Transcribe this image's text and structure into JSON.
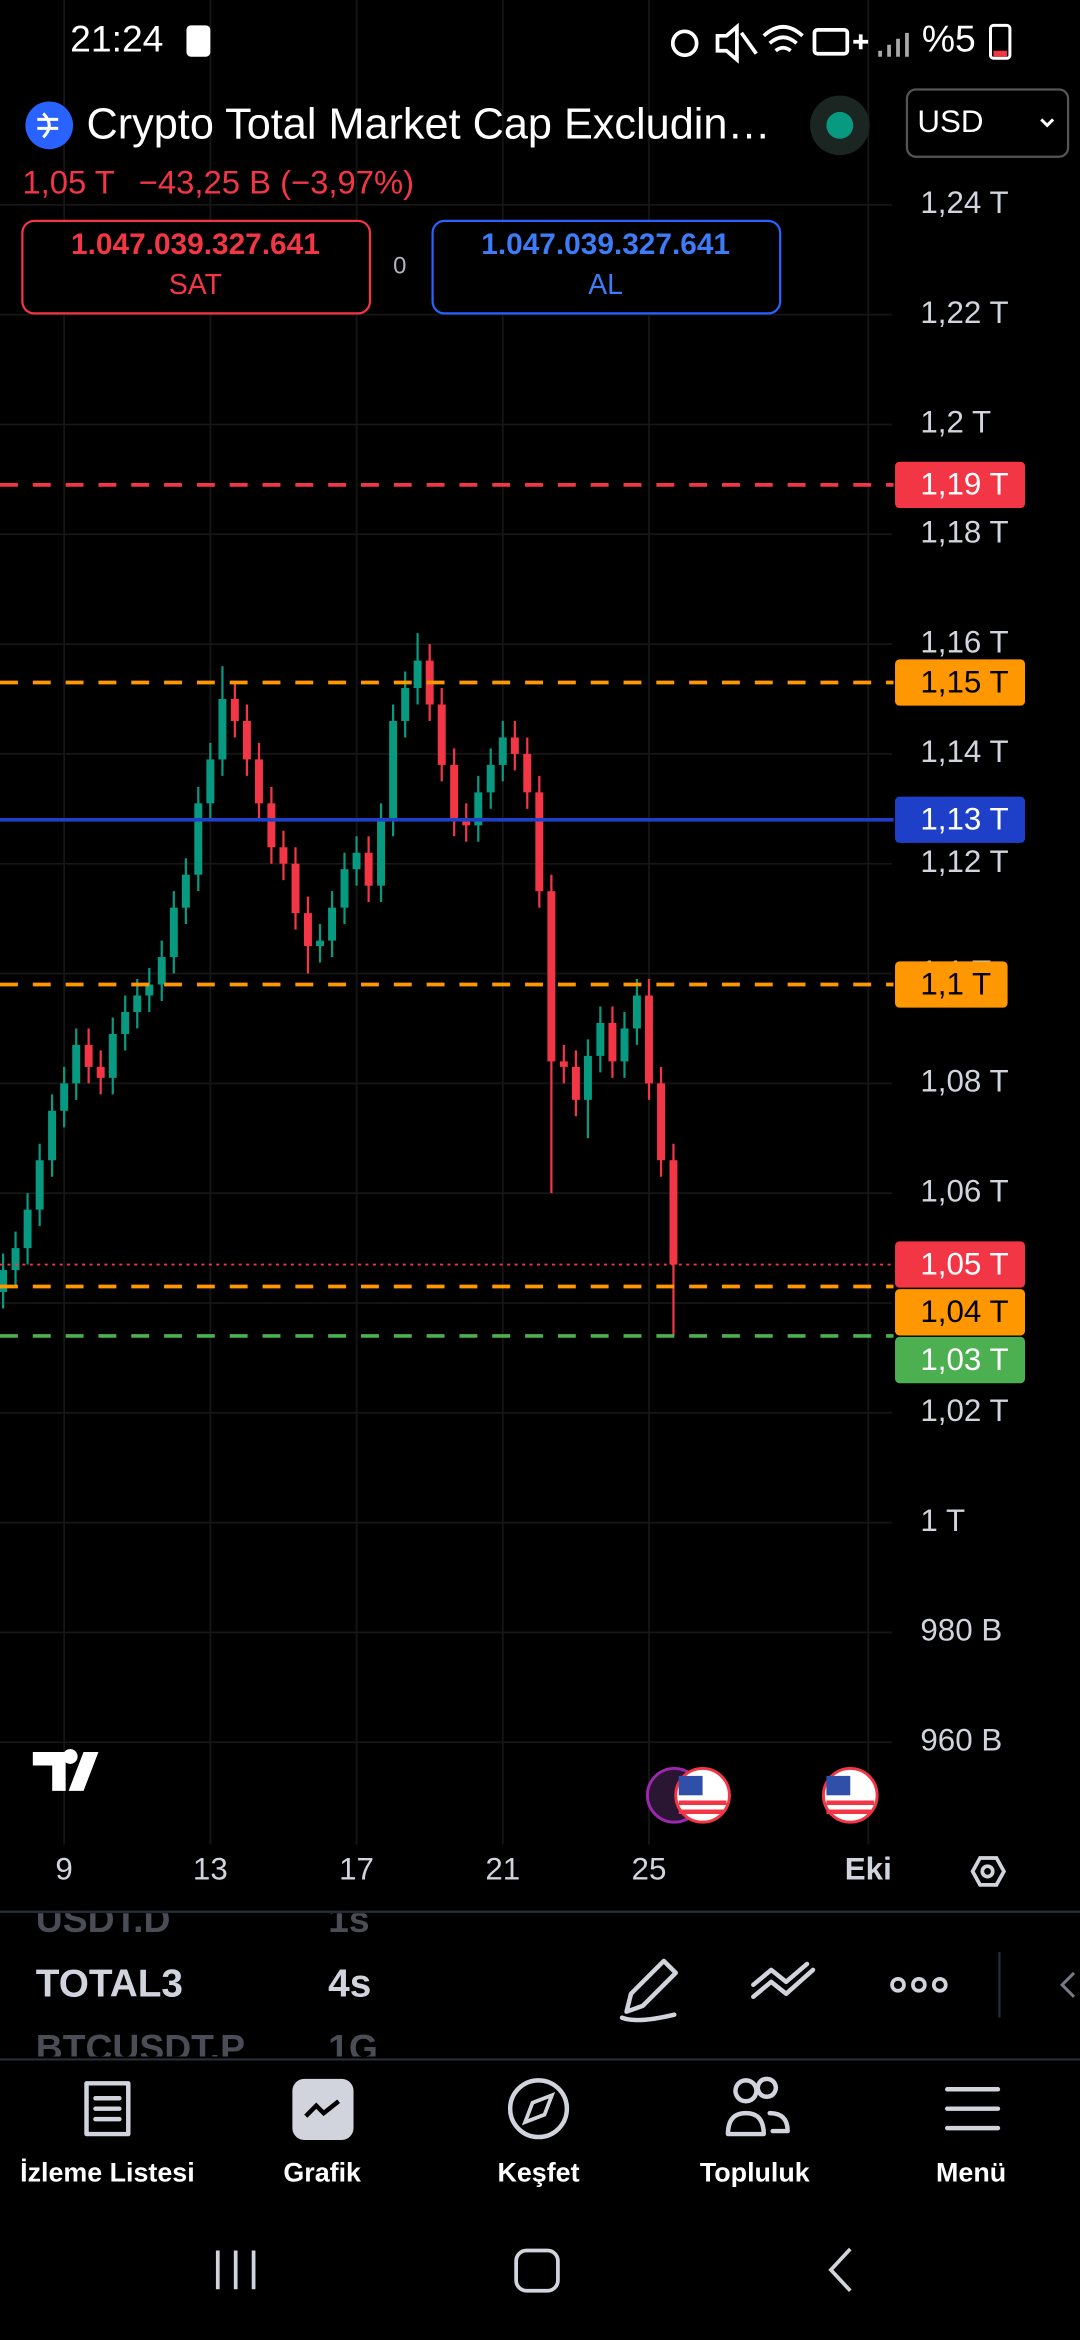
{
  "status_bar": {
    "time": "21:24",
    "battery": "%5"
  },
  "header": {
    "title": "Crypto Total Market Cap Excludin…",
    "price": "1,05 T",
    "change": "−43,25 B (−3,97%)",
    "currency": "USD"
  },
  "trade": {
    "sell_price": "1.047.039.327.641",
    "sell_label": "SAT",
    "spread": "0",
    "buy_price": "1.047.039.327.641",
    "buy_label": "AL"
  },
  "chart_data": {
    "type": "candlestick",
    "up_color": "#089981",
    "down_color": "#f23645",
    "x": [
      7.33,
      7.67,
      8,
      8.33,
      8.67,
      9,
      9.33,
      9.67,
      10,
      10.33,
      10.67,
      11,
      11.33,
      11.67,
      12,
      12.33,
      12.67,
      13,
      13.33,
      13.67,
      14,
      14.33,
      14.67,
      15,
      15.33,
      15.67,
      16,
      16.33,
      16.67,
      17,
      17.33,
      17.67,
      18,
      18.33,
      18.67,
      19,
      19.33,
      19.67,
      20,
      20.33,
      20.67,
      21,
      21.33,
      21.67,
      22,
      22.33,
      22.67,
      23,
      23.33,
      23.67,
      24,
      24.33,
      24.67,
      25,
      25.33,
      25.67
    ],
    "open": [
      1.042,
      1.046,
      1.05,
      1.057,
      1.066,
      1.075,
      1.08,
      1.087,
      1.083,
      1.081,
      1.089,
      1.093,
      1.096,
      1.098,
      1.103,
      1.112,
      1.118,
      1.131,
      1.139,
      1.15,
      1.146,
      1.139,
      1.131,
      1.123,
      1.12,
      1.111,
      1.105,
      1.106,
      1.112,
      1.119,
      1.122,
      1.116,
      1.128,
      1.146,
      1.152,
      1.157,
      1.149,
      1.138,
      1.128,
      1.127,
      1.133,
      1.138,
      1.143,
      1.14,
      1.133,
      1.115,
      1.084,
      1.083,
      1.077,
      1.085,
      1.091,
      1.084,
      1.09,
      1.096,
      1.08,
      1.066
    ],
    "high": [
      1.049,
      1.053,
      1.06,
      1.069,
      1.078,
      1.083,
      1.09,
      1.09,
      1.086,
      1.092,
      1.096,
      1.099,
      1.101,
      1.106,
      1.115,
      1.121,
      1.134,
      1.142,
      1.156,
      1.153,
      1.149,
      1.142,
      1.134,
      1.126,
      1.123,
      1.114,
      1.109,
      1.115,
      1.122,
      1.125,
      1.125,
      1.131,
      1.149,
      1.155,
      1.162,
      1.16,
      1.152,
      1.141,
      1.131,
      1.136,
      1.141,
      1.146,
      1.146,
      1.143,
      1.136,
      1.118,
      1.087,
      1.086,
      1.088,
      1.094,
      1.094,
      1.093,
      1.099,
      1.099,
      1.083,
      1.069
    ],
    "low": [
      1.039,
      1.043,
      1.047,
      1.054,
      1.063,
      1.072,
      1.077,
      1.08,
      1.078,
      1.078,
      1.086,
      1.09,
      1.093,
      1.095,
      1.1,
      1.109,
      1.115,
      1.128,
      1.136,
      1.143,
      1.136,
      1.128,
      1.12,
      1.117,
      1.108,
      1.1,
      1.102,
      1.103,
      1.109,
      1.116,
      1.113,
      1.113,
      1.125,
      1.143,
      1.149,
      1.146,
      1.135,
      1.125,
      1.124,
      1.124,
      1.13,
      1.135,
      1.137,
      1.13,
      1.112,
      1.06,
      1.08,
      1.074,
      1.07,
      1.082,
      1.081,
      1.081,
      1.087,
      1.077,
      1.063,
      1.034
    ],
    "close": [
      1.046,
      1.05,
      1.057,
      1.066,
      1.075,
      1.08,
      1.087,
      1.083,
      1.081,
      1.089,
      1.093,
      1.096,
      1.098,
      1.103,
      1.112,
      1.118,
      1.131,
      1.139,
      1.15,
      1.146,
      1.139,
      1.131,
      1.123,
      1.12,
      1.111,
      1.105,
      1.106,
      1.112,
      1.119,
      1.122,
      1.116,
      1.128,
      1.146,
      1.152,
      1.157,
      1.149,
      1.138,
      1.128,
      1.127,
      1.133,
      1.138,
      1.143,
      1.14,
      1.133,
      1.115,
      1.084,
      1.083,
      1.077,
      1.085,
      1.091,
      1.084,
      1.09,
      1.096,
      1.08,
      1.066,
      1.047
    ],
    "xlim": [
      7.245,
      31.65
    ],
    "xticks": [
      9,
      13,
      17,
      21,
      25,
      {
        "value": 31,
        "label": "Eki"
      }
    ],
    "ylim": [
      0.943,
      1.261
    ],
    "yticks": [
      {
        "value": 0.96,
        "label": "960 B"
      },
      {
        "value": 0.98,
        "label": "980 B"
      },
      {
        "value": 1,
        "label": "1 T"
      },
      {
        "value": 1.02,
        "label": "1,02 T"
      },
      {
        "value": 1.04,
        "label": "1,04 T"
      },
      {
        "value": 1.06,
        "label": "1,06 T"
      },
      {
        "value": 1.08,
        "label": "1,08 T"
      },
      {
        "value": 1.1,
        "label": "1,1 T"
      },
      {
        "value": 1.12,
        "label": "1,12 T"
      },
      {
        "value": 1.14,
        "label": "1,14 T"
      },
      {
        "value": 1.16,
        "label": "1,16 T"
      },
      {
        "value": 1.18,
        "label": "1,18 T"
      },
      {
        "value": 1.2,
        "label": "1,2 T"
      },
      {
        "value": 1.22,
        "label": "1,22 T"
      },
      {
        "value": 1.24,
        "label": "1,24 T"
      }
    ],
    "grid": true,
    "price_lines": [
      {
        "value": 1.189,
        "label": "1,19 T",
        "color": "#f23645",
        "text_color": "#ffffff",
        "style": "dashed"
      },
      {
        "value": 1.153,
        "label": "1,15 T",
        "color": "#ff9800",
        "text_color": "#000000",
        "style": "dashed"
      },
      {
        "value": 1.128,
        "label": "1,13 T",
        "color": "#1e40c8",
        "text_color": "#ffffff",
        "style": "solid"
      },
      {
        "value": 1.098,
        "label": "1,1 T",
        "color": "#ff9800",
        "text_color": "#000000",
        "style": "dashed"
      },
      {
        "value": 1.047,
        "label": "1,05 T",
        "color": "#f23645",
        "text_color": "#ffffff",
        "style": "dotted"
      },
      {
        "value": 1.043,
        "label": "1,04 T",
        "color": "#ff9800",
        "text_color": "#000000",
        "style": "dashed"
      },
      {
        "value": 1.034,
        "label": "1,03 T",
        "color": "#4caf50",
        "text_color": "#ffffff",
        "style": "dashed"
      }
    ]
  },
  "toolbar": {
    "symbols": [
      {
        "name": "USDT.D",
        "interval": "1s"
      },
      {
        "name": "TOTAL3",
        "interval": "4s"
      },
      {
        "name": "BTCUSDT.P",
        "interval": "1G"
      }
    ]
  },
  "nav": {
    "items": [
      "İzleme Listesi",
      "Grafik",
      "Keşfet",
      "Topluluk",
      "Menü"
    ]
  }
}
